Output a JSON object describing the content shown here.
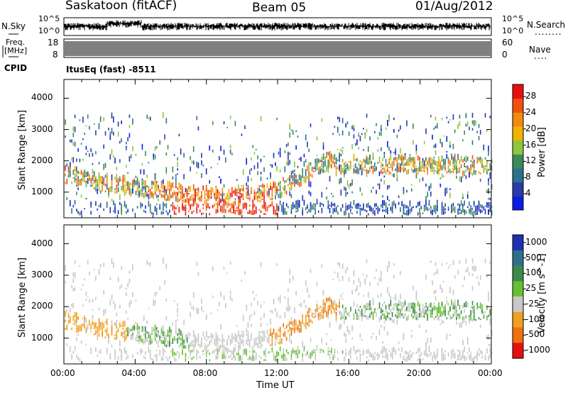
{
  "header": {
    "station": "Saskatoon (fitACF)",
    "beam": "Beam 05",
    "date": "01/Aug/2012"
  },
  "sidepanels": {
    "nsky_label": "N.Sky",
    "freq_label_line1": "Freq.",
    "freq_label_line2": "[MHz]",
    "cpid_label": "CPID",
    "nsearch_label": "N.Search",
    "nave_label": "Nave",
    "nsearch_dots": "........",
    "nave_dots": "....",
    "noise_ticks": [
      "10^5",
      "10^0"
    ],
    "noise_ticks_right": [
      "10^5",
      "10^0"
    ],
    "freq_ticks": [
      "18",
      "8"
    ],
    "nave_ticks": [
      "60",
      "0"
    ],
    "cpid_text": "ItusEq (fast) -8511"
  },
  "chart_data": [
    {
      "type": "heatmap",
      "name": "power",
      "title": "",
      "xlabel": "Time UT",
      "ylabel": "Slant Range [km]",
      "x_ticks": [
        "00:00",
        "04:00",
        "08:00",
        "12:00",
        "16:00",
        "20:00",
        "00:00"
      ],
      "xlim_hours": [
        0,
        24
      ],
      "y_ticks": [
        1000,
        2000,
        3000,
        4000
      ],
      "ylim": [
        180,
        4600
      ],
      "colorbar_label": "Power [dB]",
      "colorbar_ticks": [
        4,
        8,
        12,
        16,
        20,
        24,
        28
      ],
      "colorbar_range": [
        0,
        31
      ],
      "colors": [
        "#0a1ee6",
        "#2a3aa8",
        "#2f6f8e",
        "#3a8a5a",
        "#8ec63c",
        "#f0b400",
        "#f08a10",
        "#f05010",
        "#e61010"
      ]
    },
    {
      "type": "heatmap",
      "name": "velocity",
      "title": "",
      "xlabel": "Time UT",
      "ylabel": "Slant Range [km]",
      "x_ticks": [
        "00:00",
        "04:00",
        "08:00",
        "12:00",
        "16:00",
        "20:00",
        "00:00"
      ],
      "xlim_hours": [
        0,
        24
      ],
      "y_ticks": [
        1000,
        2000,
        3000,
        4000
      ],
      "ylim": [
        180,
        4600
      ],
      "colorbar_label": "Velocity [m s^-1]",
      "colorbar_ticks": [
        "1000",
        "500",
        "100",
        "25",
        "-25",
        "-100",
        "-500",
        "-1000"
      ],
      "colors": [
        "#1f2fb0",
        "#2f6f8e",
        "#3a8a4a",
        "#66c030",
        "#c8c8c8",
        "#f0a020",
        "#f07010",
        "#e61010"
      ]
    }
  ]
}
